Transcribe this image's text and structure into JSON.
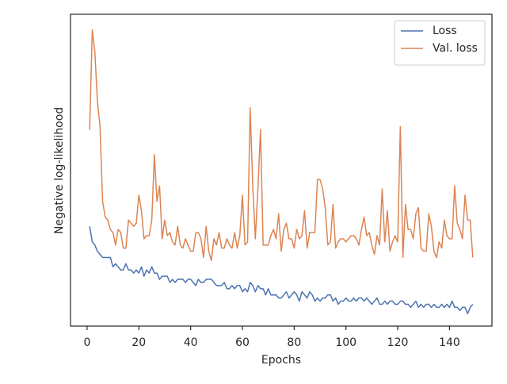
{
  "chart_data": {
    "type": "line",
    "xlabel": "Epochs",
    "ylabel": "Negative log-likelihood",
    "xlim": [
      -6.4,
      156.4
    ],
    "xticks": [
      0,
      20,
      40,
      60,
      80,
      100,
      120,
      140
    ],
    "ylim": [
      0,
      1
    ],
    "legend": "upper right",
    "x": [
      1,
      2,
      3,
      4,
      5,
      6,
      7,
      8,
      9,
      10,
      11,
      12,
      13,
      14,
      15,
      16,
      17,
      18,
      19,
      20,
      21,
      22,
      23,
      24,
      25,
      26,
      27,
      28,
      29,
      30,
      31,
      32,
      33,
      34,
      35,
      36,
      37,
      38,
      39,
      40,
      41,
      42,
      43,
      44,
      45,
      46,
      47,
      48,
      49,
      50,
      51,
      52,
      53,
      54,
      55,
      56,
      57,
      58,
      59,
      60,
      61,
      62,
      63,
      64,
      65,
      66,
      67,
      68,
      69,
      70,
      71,
      72,
      73,
      74,
      75,
      76,
      77,
      78,
      79,
      80,
      81,
      82,
      83,
      84,
      85,
      86,
      87,
      88,
      89,
      90,
      91,
      92,
      93,
      94,
      95,
      96,
      97,
      98,
      99,
      100,
      101,
      102,
      103,
      104,
      105,
      106,
      107,
      108,
      109,
      110,
      111,
      112,
      113,
      114,
      115,
      116,
      117,
      118,
      119,
      120,
      121,
      122,
      123,
      124,
      125,
      126,
      127,
      128,
      129,
      130,
      131,
      132,
      133,
      134,
      135,
      136,
      137,
      138,
      139,
      140,
      141,
      142,
      143,
      144,
      145,
      146,
      147,
      148,
      149
    ],
    "series": [
      {
        "name": "Loss",
        "color": "#4c72b0",
        "values": [
          0.32,
          0.27,
          0.26,
          0.24,
          0.23,
          0.22,
          0.22,
          0.22,
          0.22,
          0.19,
          0.2,
          0.19,
          0.18,
          0.18,
          0.2,
          0.18,
          0.18,
          0.17,
          0.18,
          0.17,
          0.19,
          0.16,
          0.18,
          0.17,
          0.19,
          0.17,
          0.17,
          0.15,
          0.16,
          0.16,
          0.16,
          0.14,
          0.15,
          0.14,
          0.15,
          0.15,
          0.15,
          0.14,
          0.15,
          0.15,
          0.14,
          0.13,
          0.15,
          0.14,
          0.14,
          0.15,
          0.15,
          0.15,
          0.14,
          0.13,
          0.13,
          0.13,
          0.14,
          0.12,
          0.12,
          0.13,
          0.12,
          0.13,
          0.13,
          0.11,
          0.12,
          0.11,
          0.14,
          0.13,
          0.11,
          0.13,
          0.12,
          0.12,
          0.1,
          0.12,
          0.1,
          0.1,
          0.1,
          0.09,
          0.09,
          0.1,
          0.11,
          0.09,
          0.1,
          0.11,
          0.1,
          0.08,
          0.11,
          0.1,
          0.09,
          0.11,
          0.1,
          0.08,
          0.09,
          0.08,
          0.09,
          0.09,
          0.1,
          0.1,
          0.08,
          0.09,
          0.07,
          0.08,
          0.08,
          0.09,
          0.08,
          0.08,
          0.09,
          0.08,
          0.09,
          0.09,
          0.08,
          0.09,
          0.08,
          0.07,
          0.08,
          0.09,
          0.07,
          0.07,
          0.08,
          0.07,
          0.08,
          0.08,
          0.07,
          0.07,
          0.08,
          0.08,
          0.07,
          0.07,
          0.06,
          0.07,
          0.08,
          0.06,
          0.07,
          0.06,
          0.07,
          0.07,
          0.06,
          0.07,
          0.06,
          0.06,
          0.07,
          0.06,
          0.07,
          0.06,
          0.08,
          0.06,
          0.06,
          0.05,
          0.06,
          0.06,
          0.04,
          0.06,
          0.07
        ]
      },
      {
        "name": "Val. loss",
        "color": "#dd8452",
        "values": [
          0.63,
          0.95,
          0.88,
          0.72,
          0.64,
          0.4,
          0.35,
          0.34,
          0.31,
          0.3,
          0.26,
          0.31,
          0.3,
          0.25,
          0.25,
          0.34,
          0.33,
          0.32,
          0.33,
          0.42,
          0.37,
          0.28,
          0.29,
          0.29,
          0.34,
          0.55,
          0.4,
          0.45,
          0.28,
          0.34,
          0.29,
          0.3,
          0.27,
          0.26,
          0.32,
          0.26,
          0.25,
          0.28,
          0.26,
          0.24,
          0.24,
          0.3,
          0.3,
          0.28,
          0.22,
          0.32,
          0.24,
          0.21,
          0.28,
          0.26,
          0.3,
          0.25,
          0.25,
          0.28,
          0.26,
          0.25,
          0.3,
          0.25,
          0.29,
          0.42,
          0.26,
          0.27,
          0.7,
          0.45,
          0.28,
          0.44,
          0.63,
          0.26,
          0.26,
          0.26,
          0.29,
          0.31,
          0.28,
          0.36,
          0.24,
          0.31,
          0.33,
          0.28,
          0.28,
          0.25,
          0.31,
          0.28,
          0.29,
          0.37,
          0.25,
          0.3,
          0.3,
          0.3,
          0.47,
          0.47,
          0.44,
          0.38,
          0.26,
          0.27,
          0.39,
          0.25,
          0.27,
          0.28,
          0.28,
          0.27,
          0.28,
          0.29,
          0.29,
          0.28,
          0.26,
          0.31,
          0.35,
          0.29,
          0.3,
          0.26,
          0.23,
          0.29,
          0.26,
          0.44,
          0.27,
          0.37,
          0.24,
          0.27,
          0.29,
          0.27,
          0.64,
          0.22,
          0.39,
          0.31,
          0.31,
          0.28,
          0.36,
          0.38,
          0.25,
          0.24,
          0.24,
          0.36,
          0.32,
          0.24,
          0.22,
          0.27,
          0.25,
          0.34,
          0.29,
          0.28,
          0.28,
          0.45,
          0.33,
          0.31,
          0.28,
          0.42,
          0.34,
          0.34,
          0.22
        ]
      }
    ]
  }
}
